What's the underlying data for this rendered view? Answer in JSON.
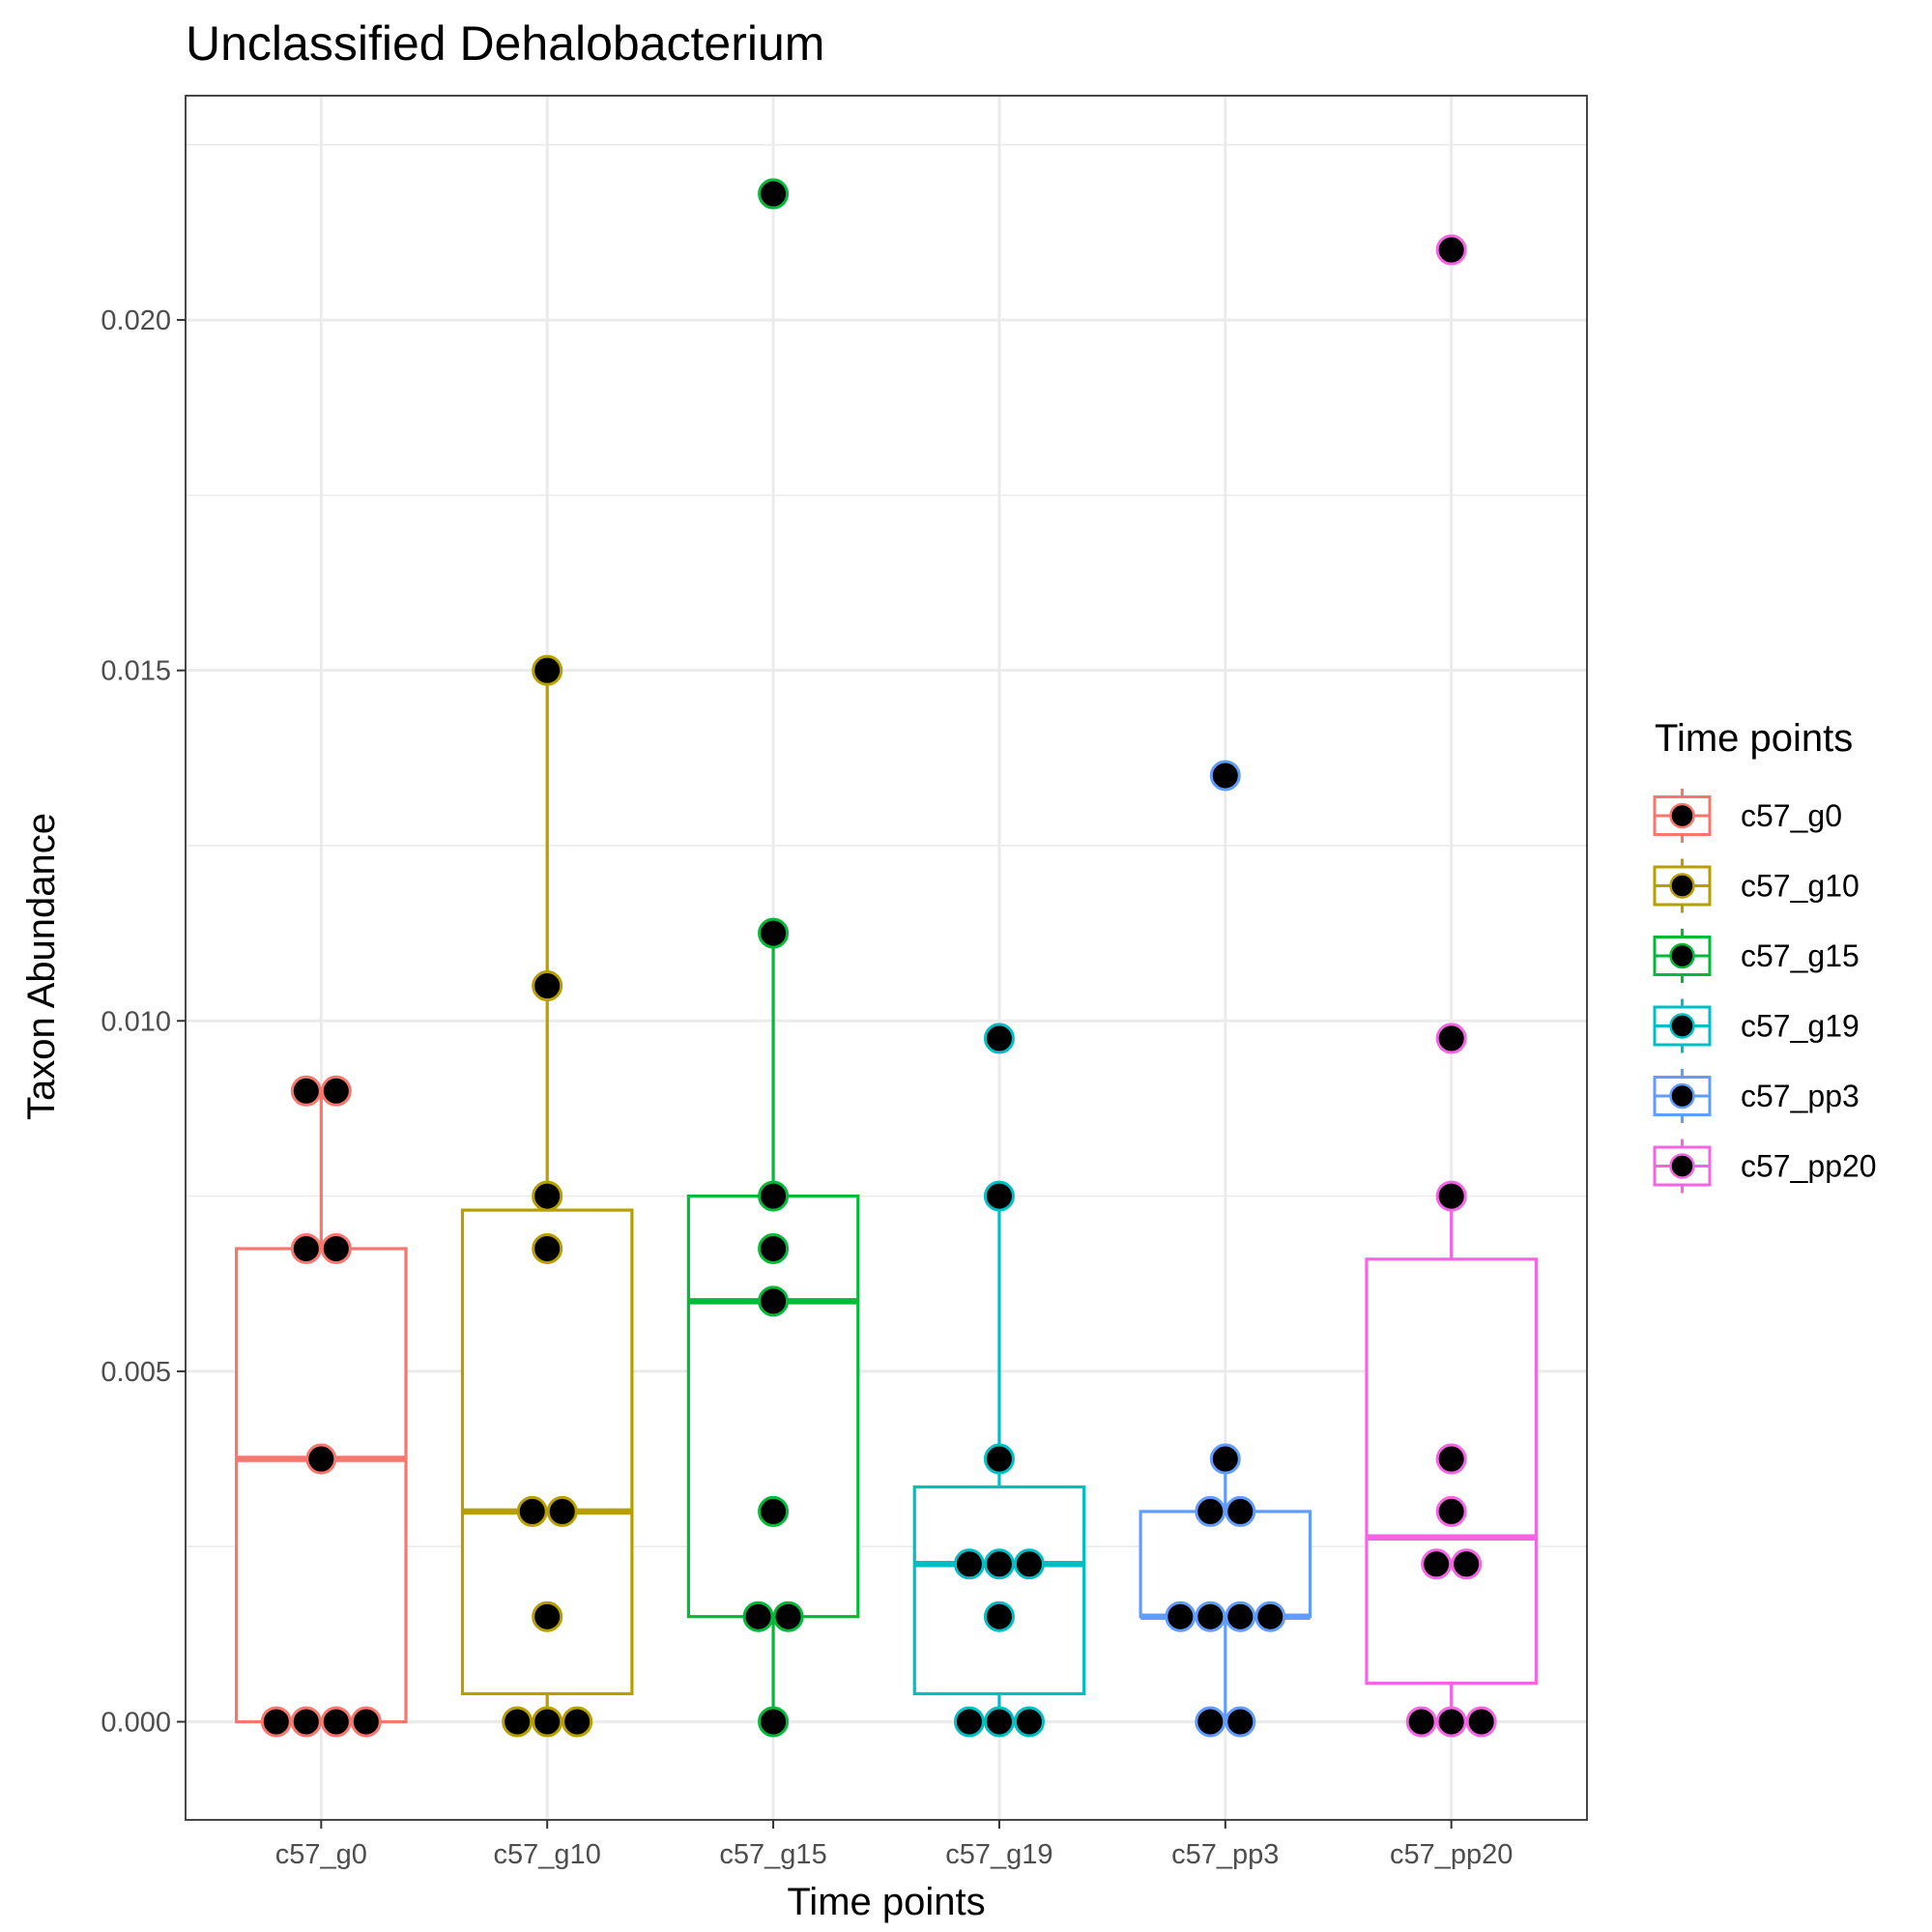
{
  "chart_data": {
    "type": "boxplot",
    "title": "Unclassified  Dehalobacterium",
    "xlabel": "Time points",
    "ylabel": "Taxon Abundance",
    "ylim": [
      -0.0014,
      0.0232
    ],
    "yticks": [
      0.0,
      0.005,
      0.01,
      0.015,
      0.02
    ],
    "ytick_labels": [
      "0.000",
      "0.005",
      "0.010",
      "0.015",
      "0.020"
    ],
    "grid": true,
    "legend": {
      "title": "Time points",
      "position": "right"
    },
    "categories": [
      "c57_g0",
      "c57_g10",
      "c57_g15",
      "c57_g19",
      "c57_pp3",
      "c57_pp20"
    ],
    "series": [
      {
        "name": "c57_g0",
        "color": "#F8766D",
        "box": {
          "lower_whisker": 0.0,
          "q1": 0.0,
          "median": 0.00375,
          "q3": 0.00675,
          "upper_whisker": 0.009
        },
        "points": [
          0.009,
          0.009,
          0.00675,
          0.00675,
          0.00375,
          0.0,
          0.0,
          0.0,
          0.0
        ]
      },
      {
        "name": "c57_g10",
        "color": "#B79F00",
        "box": {
          "lower_whisker": 0.0,
          "q1": 0.0004,
          "median": 0.003,
          "q3": 0.0073,
          "upper_whisker": 0.015
        },
        "points": [
          0.015,
          0.0105,
          0.0075,
          0.00675,
          0.003,
          0.003,
          0.0015,
          0.0,
          0.0,
          0.0
        ]
      },
      {
        "name": "c57_g15",
        "color": "#00BA38",
        "box": {
          "lower_whisker": 0.0,
          "q1": 0.0015,
          "median": 0.006,
          "q3": 0.0075,
          "upper_whisker": 0.01125
        },
        "points": [
          0.0218,
          0.01125,
          0.0075,
          0.00675,
          0.006,
          0.003,
          0.0015,
          0.0015,
          0.0
        ]
      },
      {
        "name": "c57_g19",
        "color": "#00BFC4",
        "box": {
          "lower_whisker": 0.0,
          "q1": 0.0004,
          "median": 0.00225,
          "q3": 0.00335,
          "upper_whisker": 0.0075
        },
        "points": [
          0.00975,
          0.0075,
          0.00375,
          0.00225,
          0.00225,
          0.00225,
          0.0015,
          0.0,
          0.0,
          0.0
        ]
      },
      {
        "name": "c57_pp3",
        "color": "#619CFF",
        "box": {
          "lower_whisker": 0.0,
          "q1": 0.0015,
          "median": 0.0015,
          "q3": 0.003,
          "upper_whisker": 0.00375
        },
        "points": [
          0.0135,
          0.00375,
          0.003,
          0.003,
          0.0015,
          0.0015,
          0.0015,
          0.0015,
          0.0,
          0.0
        ]
      },
      {
        "name": "c57_pp20",
        "color": "#F564E3",
        "box": {
          "lower_whisker": 0.0,
          "q1": 0.00055,
          "median": 0.00263,
          "q3": 0.0066,
          "upper_whisker": 0.0075
        },
        "points": [
          0.021,
          0.00975,
          0.0075,
          0.00375,
          0.003,
          0.00225,
          0.00225,
          0.0,
          0.0,
          0.0
        ]
      }
    ]
  }
}
